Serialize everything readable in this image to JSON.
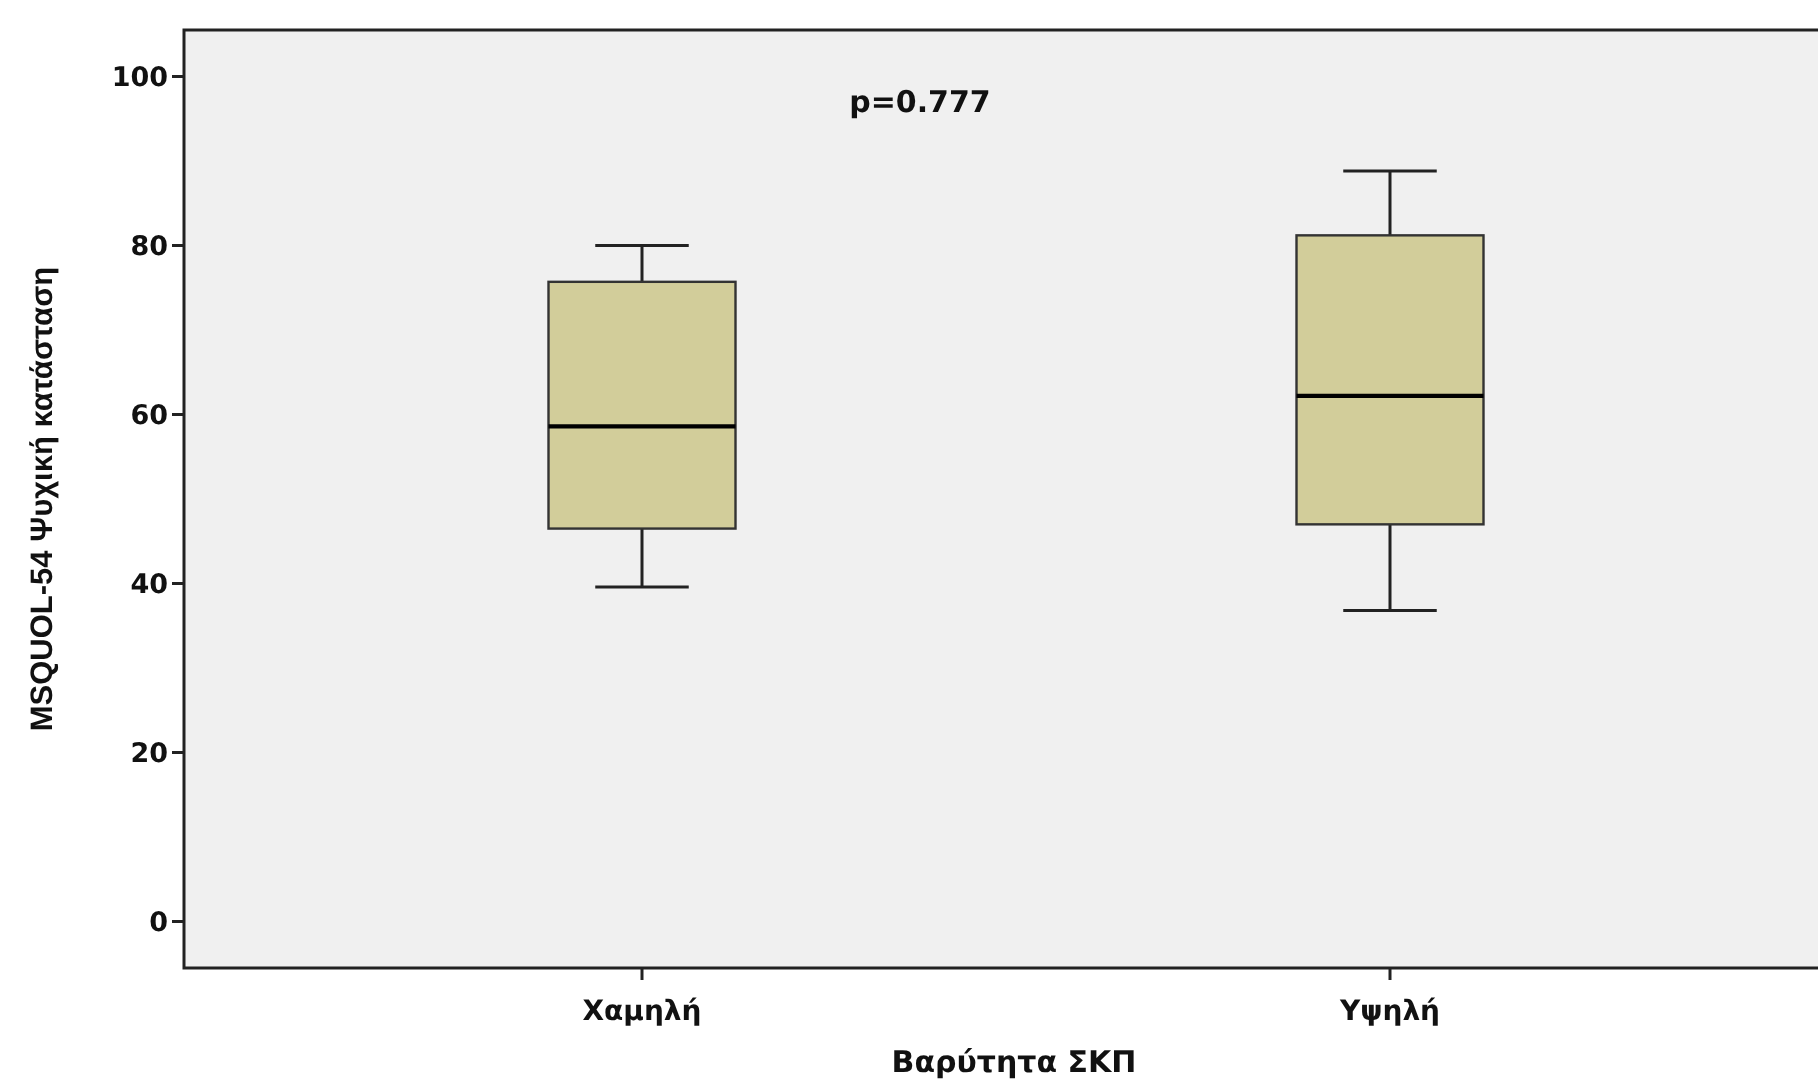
{
  "chart_data": {
    "type": "box",
    "categories": [
      "Χαμηλή",
      "Υψηλή"
    ],
    "boxes": [
      {
        "low": 39.6,
        "q1": 46.5,
        "median": 58.6,
        "q3": 75.7,
        "high": 80
      },
      {
        "low": 36.8,
        "q1": 47,
        "median": 62.2,
        "q3": 81.2,
        "high": 88.8
      }
    ],
    "color": "#d2cd9a",
    "xlabel": "Βαρύτητα ΣΚΠ",
    "ylabel": "MSQUOL-54 Ψυχική κατάσταση",
    "ylim": [
      -5.5,
      105.5
    ],
    "yticks": [
      0,
      20,
      40,
      60,
      80,
      100
    ],
    "annotations": [
      "p=0.777"
    ]
  }
}
